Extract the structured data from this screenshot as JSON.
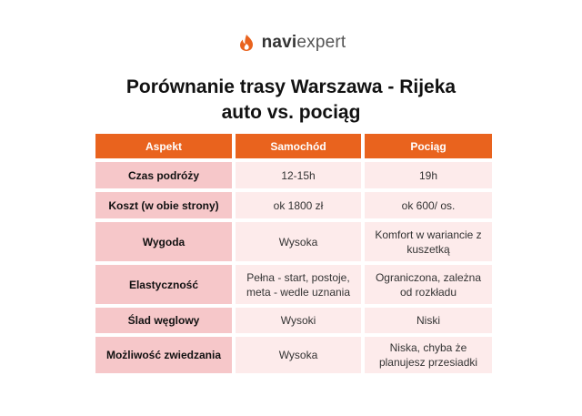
{
  "logo": {
    "part_bold": "navi",
    "part_light": "expert",
    "icon": "naviexpert-flame-logo-icon",
    "icon_color": "#e9631e"
  },
  "title": {
    "line1": "Porównanie trasy Warszawa - Rijeka",
    "line2": "auto vs. pociąg"
  },
  "colors": {
    "header_bg": "#e9631e",
    "aspect_bg": "#f6c7c9",
    "cell_bg": "#fdebeb"
  },
  "table": {
    "headers": [
      "Aspekt",
      "Samochód",
      "Pociąg"
    ],
    "rows": [
      [
        "Czas podróży",
        "12-15h",
        "19h"
      ],
      [
        "Koszt (w obie strony)",
        "ok 1800 zł",
        "ok 600/ os."
      ],
      [
        "Wygoda",
        "Wysoka",
        "Komfort w wariancie z kuszetką"
      ],
      [
        "Elastyczność",
        "Pełna - start, postoje, meta - wedle uznania",
        "Ograniczona, zależna od rozkładu"
      ],
      [
        "Ślad węglowy",
        "Wysoki",
        "Niski"
      ],
      [
        "Możliwość zwiedzania",
        "Wysoka",
        "Niska, chyba że planujesz przesiadki"
      ]
    ]
  }
}
